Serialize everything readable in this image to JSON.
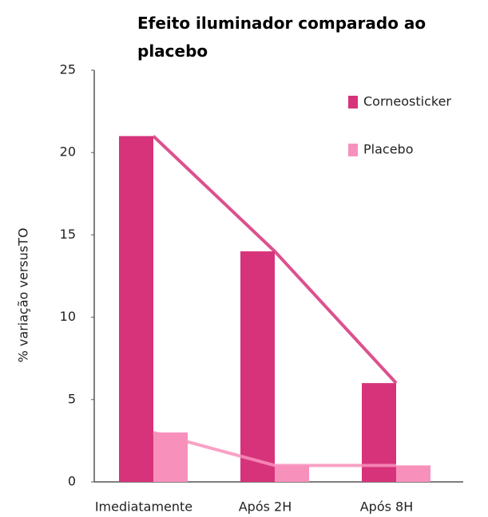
{
  "chart_data": {
    "type": "bar",
    "title": "Efeito iluminador comparado ao placebo",
    "y_label": "% variação versusTO",
    "categories": [
      "Imediatamente",
      "Após 2H",
      "Após 8H"
    ],
    "series": [
      {
        "name": "Corneosticker",
        "color": "#d6337a",
        "values": [
          21,
          14,
          6
        ]
      },
      {
        "name": "Placebo",
        "color": "#f890bc",
        "values": [
          3,
          1,
          1
        ]
      }
    ],
    "ylim": [
      0,
      25
    ],
    "yticks": [
      0,
      5,
      10,
      15,
      20,
      25
    ],
    "grid": false
  }
}
